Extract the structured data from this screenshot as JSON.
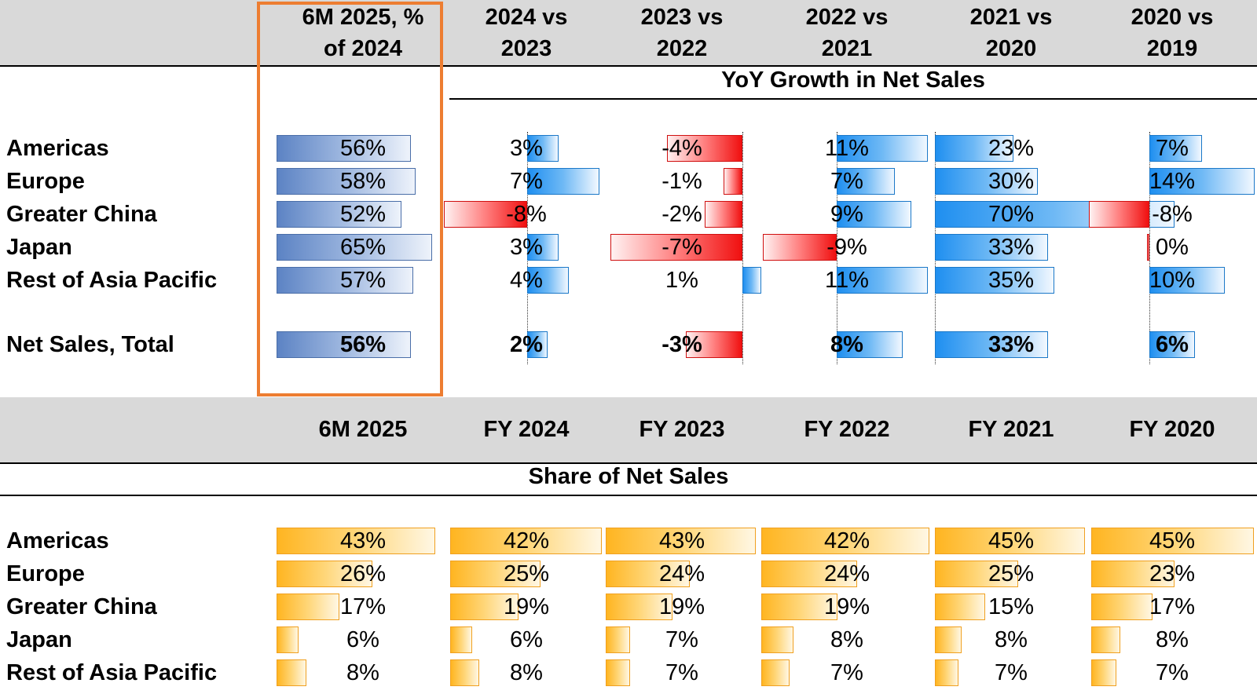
{
  "chart_data": [
    {
      "type": "bar",
      "title": "YoY Growth in Net Sales",
      "categories": [
        "Americas",
        "Europe",
        "Greater China",
        "Japan",
        "Rest of Asia Pacific",
        "Net Sales, Total"
      ],
      "series": [
        {
          "name": "6M 2025, % of 2024",
          "values": [
            56,
            58,
            52,
            65,
            57,
            56
          ],
          "labels": [
            "56%",
            "58%",
            "52%",
            "65%",
            "57%",
            "56%"
          ]
        },
        {
          "name": "2024 vs 2023",
          "values": [
            3,
            7,
            -8,
            3,
            4,
            2
          ],
          "labels": [
            "3%",
            "7%",
            "-8%",
            "3%",
            "4%",
            "2%"
          ]
        },
        {
          "name": "2023 vs 2022",
          "values": [
            -4,
            -1,
            -2,
            -7,
            1,
            -3
          ],
          "labels": [
            "-4%",
            "-1%",
            "-2%",
            "-7%",
            "1%",
            "-3%"
          ]
        },
        {
          "name": "2022 vs 2021",
          "values": [
            11,
            7,
            9,
            -9,
            11,
            8
          ],
          "labels": [
            "11%",
            "7%",
            "9%",
            "-9%",
            "11%",
            "8%"
          ]
        },
        {
          "name": "2021 vs 2020",
          "values": [
            23,
            30,
            70,
            33,
            35,
            33
          ],
          "labels": [
            "23%",
            "30%",
            "70%",
            "33%",
            "35%",
            "33%"
          ]
        },
        {
          "name": "2020 vs 2019",
          "values": [
            7,
            14,
            -8,
            0,
            10,
            6
          ],
          "labels": [
            "7%",
            "14%",
            "-8%",
            "0%",
            "10%",
            "6%"
          ]
        }
      ]
    },
    {
      "type": "bar",
      "title": "Share of Net Sales",
      "categories": [
        "Americas",
        "Europe",
        "Greater China",
        "Japan",
        "Rest of Asia Pacific"
      ],
      "series": [
        {
          "name": "6M 2025",
          "values": [
            43,
            26,
            17,
            6,
            8
          ],
          "labels": [
            "43%",
            "26%",
            "17%",
            "6%",
            "8%"
          ]
        },
        {
          "name": "FY 2024",
          "values": [
            42,
            25,
            19,
            6,
            8
          ],
          "labels": [
            "42%",
            "25%",
            "19%",
            "6%",
            "8%"
          ]
        },
        {
          "name": "FY 2023",
          "values": [
            43,
            24,
            19,
            7,
            7
          ],
          "labels": [
            "43%",
            "24%",
            "19%",
            "7%",
            "7%"
          ]
        },
        {
          "name": "FY 2022",
          "values": [
            42,
            24,
            19,
            8,
            7
          ],
          "labels": [
            "42%",
            "24%",
            "19%",
            "8%",
            "7%"
          ]
        },
        {
          "name": "FY 2021",
          "values": [
            45,
            25,
            15,
            8,
            7
          ],
          "labels": [
            "45%",
            "25%",
            "15%",
            "8%",
            "7%"
          ]
        },
        {
          "name": "FY 2020",
          "values": [
            45,
            23,
            17,
            8,
            7
          ],
          "labels": [
            "45%",
            "23%",
            "17%",
            "8%",
            "7%"
          ]
        }
      ]
    }
  ],
  "colors": {
    "highlight_border": "#ed7d31",
    "header_band": "#d9d9d9",
    "positive_bar": "#1f8ff0",
    "negative_bar": "#f01010",
    "first_column_bar": "#5c83c4",
    "share_bar": "#ffb521"
  }
}
